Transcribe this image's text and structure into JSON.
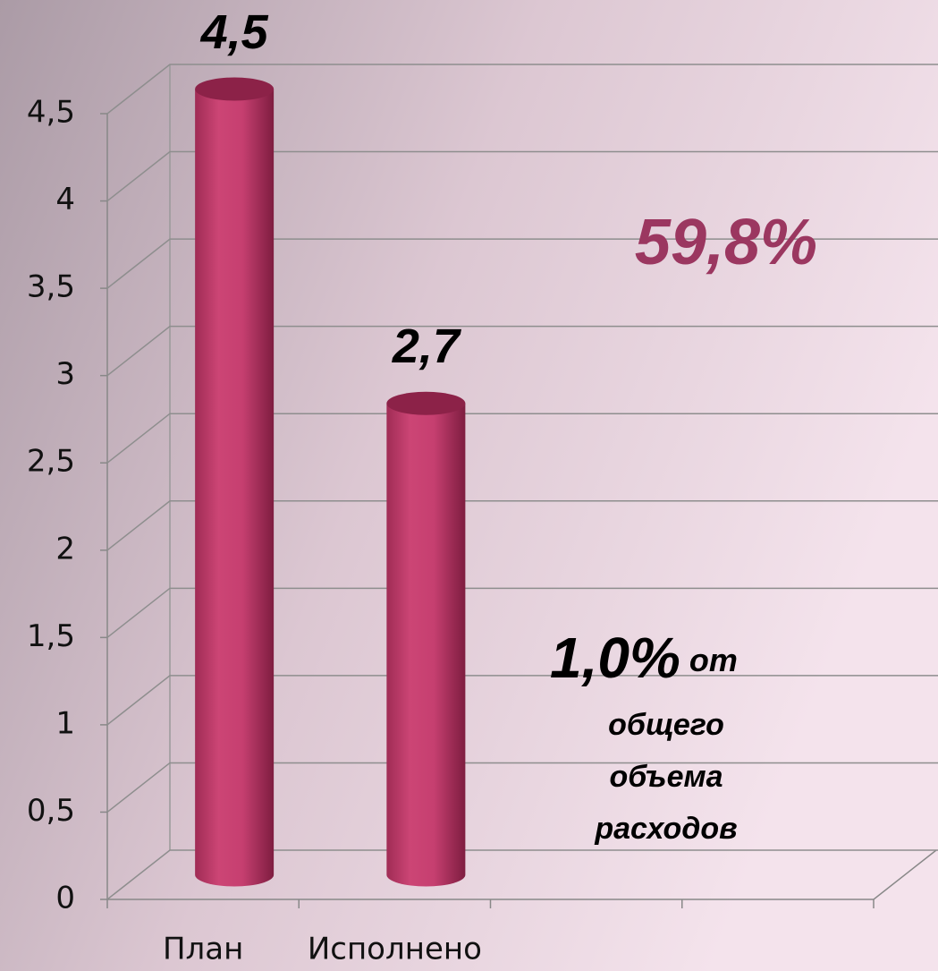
{
  "chart_data": {
    "type": "bar",
    "categories": [
      "План",
      "Исполнено",
      null,
      null
    ],
    "values": [
      4.5,
      2.7,
      null,
      null
    ],
    "value_labels": [
      "4,5",
      "2,7",
      null,
      null
    ],
    "color": "#c8416f",
    "ylim": [
      0,
      4.5
    ],
    "yticks": [
      0,
      {
        "value": 0.5,
        "label": "0,5"
      },
      1,
      {
        "value": 1.5,
        "label": "1,5"
      },
      2,
      {
        "value": 2.5,
        "label": "2,5"
      },
      3,
      {
        "value": 3.5,
        "label": "3,5"
      },
      4,
      {
        "value": 4.5,
        "label": "4,5"
      }
    ],
    "grid": true,
    "annotations": [
      "59,8%",
      "1,0%",
      "от",
      "общего",
      "объема",
      "расходов"
    ]
  }
}
